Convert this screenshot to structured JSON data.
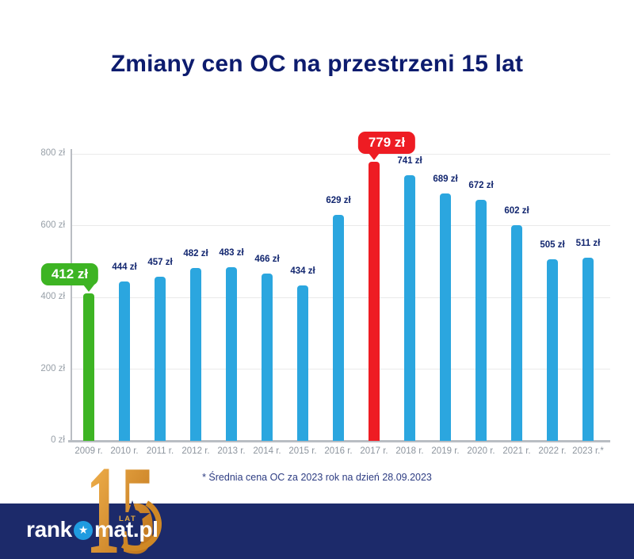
{
  "title": "Zmiany cen OC na przestrzeni 15 lat",
  "footnote": "* Średnia cena OC za 2023 rok na dzień 28.09.2023",
  "icons": {
    "star": "★"
  },
  "footer": {
    "logo_rank": "rank",
    "logo_mat": "mat.pl",
    "anniversary_number": "15",
    "anniversary_label": "LAT"
  },
  "colors": {
    "bar_blue": "#2ba6df",
    "bar_green": "#3db423",
    "bar_red": "#ee1c23",
    "title_navy": "#0d1c6e",
    "value_navy": "#12266f",
    "band_navy": "#1c2a6a",
    "gold": "#d9952f",
    "brand_star_blue": "#1f9be0"
  },
  "chart_data": {
    "type": "bar",
    "title": "Zmiany cen OC na przestrzeni 15 lat",
    "categories": [
      "2009 r.",
      "2010 r.",
      "2011 r.",
      "2012 r.",
      "2013 r.",
      "2014 r.",
      "2015 r.",
      "2016 r.",
      "2017 r.",
      "2018 r.",
      "2019 r.",
      "2020 r.",
      "2021 r.",
      "2022 r.",
      "2023 r.*"
    ],
    "values": [
      412,
      444,
      457,
      482,
      483,
      466,
      434,
      629,
      779,
      741,
      689,
      672,
      602,
      505,
      511
    ],
    "unit": "zł",
    "value_labels": [
      "412 zł",
      "444 zł",
      "457 zł",
      "482 zł",
      "483 zł",
      "466 zł",
      "434 zł",
      "629 zł",
      "779 zł",
      "741 zł",
      "689 zł",
      "672 zł",
      "602 zł",
      "505 zł",
      "511 zł"
    ],
    "xlabel": "",
    "ylabel": "",
    "ylim": [
      0,
      800
    ],
    "grid": true,
    "legend": false,
    "yticks": [
      {
        "value": 0,
        "label": "0 zł"
      },
      {
        "value": 200,
        "label": "200 zł"
      },
      {
        "value": 400,
        "label": "400 zł"
      },
      {
        "value": 600,
        "label": "600 zł"
      },
      {
        "value": 800,
        "label": "800 zł"
      }
    ],
    "bar_color": "#2ba6df",
    "annotations": [
      {
        "index": 0,
        "text": "412 zł",
        "color": "#3db423",
        "side": "left",
        "meaning": "lowest price, 2009"
      },
      {
        "index": 8,
        "text": "779 zł",
        "color": "#ee1c23",
        "side": "right",
        "meaning": "highest price, 2017"
      }
    ]
  }
}
